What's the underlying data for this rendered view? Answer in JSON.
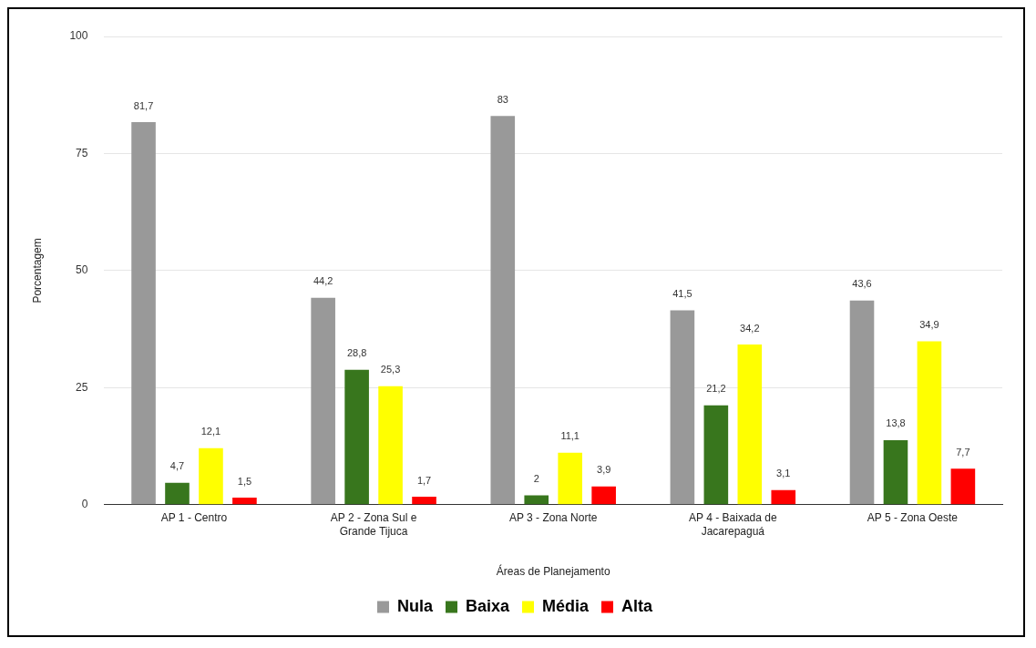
{
  "chart_data": {
    "type": "bar",
    "xlabel": "Áreas de Planejamento",
    "ylabel": "Porcentagem",
    "categories": [
      "AP 1 - Centro",
      "AP 2 - Zona Sul e Grande Tijuca",
      "AP 3 - Zona Norte",
      "AP 4 - Baixada de Jacarepaguá",
      "AP 5 - Zona Oeste"
    ],
    "series": [
      {
        "name": "Nula",
        "color": "#999999",
        "values": [
          81.7,
          44.2,
          83,
          41.5,
          43.6
        ],
        "value_labels": [
          "81,7",
          "44,2",
          "83",
          "41,5",
          "43,6"
        ]
      },
      {
        "name": "Baixa",
        "color": "#38761d",
        "values": [
          4.7,
          28.8,
          2,
          21.2,
          13.8
        ],
        "value_labels": [
          "4,7",
          "28,8",
          "2",
          "21,2",
          "13,8"
        ]
      },
      {
        "name": "Média",
        "color": "#ffff00",
        "values": [
          12.1,
          25.3,
          11.1,
          34.2,
          34.9
        ],
        "value_labels": [
          "12,1",
          "25,3",
          "11,1",
          "34,2",
          "34,9"
        ]
      },
      {
        "name": "Alta",
        "color": "#ff0000",
        "values": [
          1.5,
          1.7,
          3.9,
          3.1,
          7.7
        ],
        "value_labels": [
          "1,5",
          "1,7",
          "3,9",
          "3,1",
          "7,7"
        ]
      }
    ],
    "ylim": [
      0,
      100
    ],
    "yticks": [
      0,
      25,
      50,
      75,
      100
    ],
    "grid": "y",
    "legend": "bottom"
  }
}
